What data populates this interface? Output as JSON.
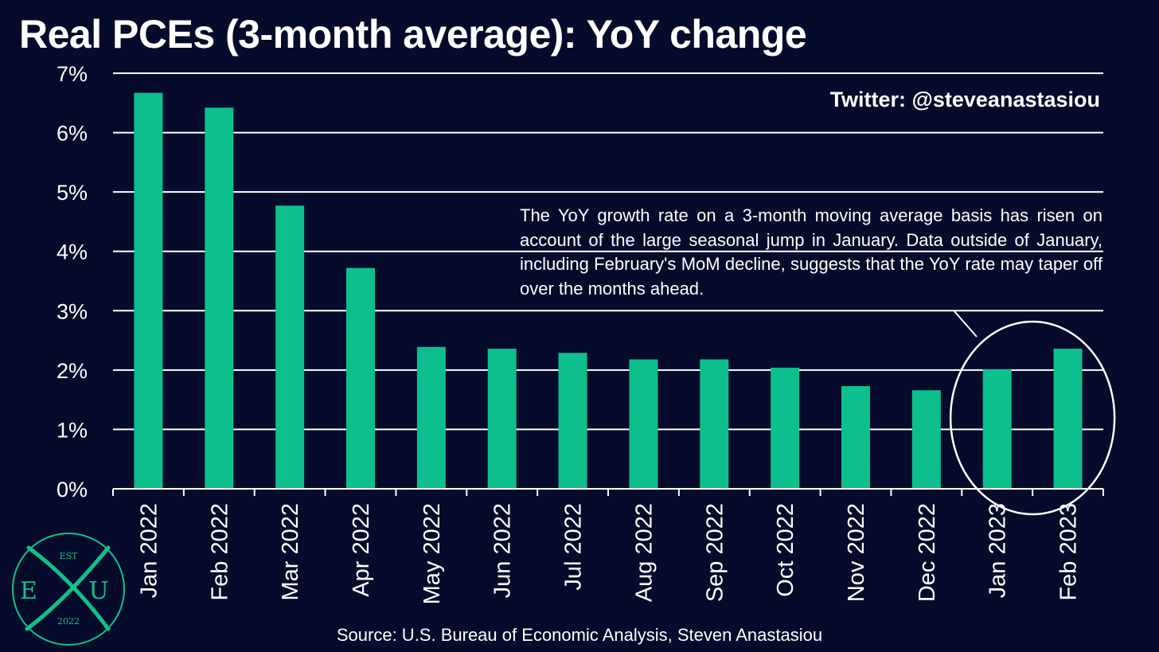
{
  "page": {
    "background": "#060b2b"
  },
  "header": {
    "title": "Real PCEs (3-month average): YoY change",
    "handle": "Twitter: @steveanastasiou"
  },
  "annotation": {
    "text": "The YoY growth rate on a 3-month moving average basis has risen on account of the large seasonal jump in January. Data outside of January, including February's MoM decline, suggests that the YoY rate may taper off over the months ahead."
  },
  "footer": {
    "source": "Source: U.S. Bureau of Economic Analysis, Steven Anastasiou"
  },
  "logo": {
    "top_text": "EST",
    "left_letter": "E",
    "right_letter": "U",
    "bottom_text": "2022",
    "color": "#10c08c"
  },
  "chart_data": {
    "type": "bar",
    "title": "Real PCEs (3-month average): YoY change",
    "categories": [
      "Jan 2022",
      "Feb 2022",
      "Mar 2022",
      "Apr 2022",
      "May 2022",
      "Jun 2022",
      "Jul 2022",
      "Aug 2022",
      "Sep 2022",
      "Oct 2022",
      "Nov 2022",
      "Dec 2022",
      "Jan 2023",
      "Feb 2023"
    ],
    "values": [
      6.67,
      6.42,
      4.77,
      3.72,
      2.39,
      2.36,
      2.29,
      2.18,
      2.18,
      2.04,
      1.73,
      1.66,
      2.01,
      2.36
    ],
    "yticks": [
      "0%",
      "1%",
      "2%",
      "3%",
      "4%",
      "5%",
      "6%",
      "7%"
    ],
    "ylim": [
      0,
      7
    ],
    "grid": true,
    "bar_color": "#0dbf8c",
    "highlight": [
      "Jan 2023",
      "Feb 2023"
    ]
  }
}
